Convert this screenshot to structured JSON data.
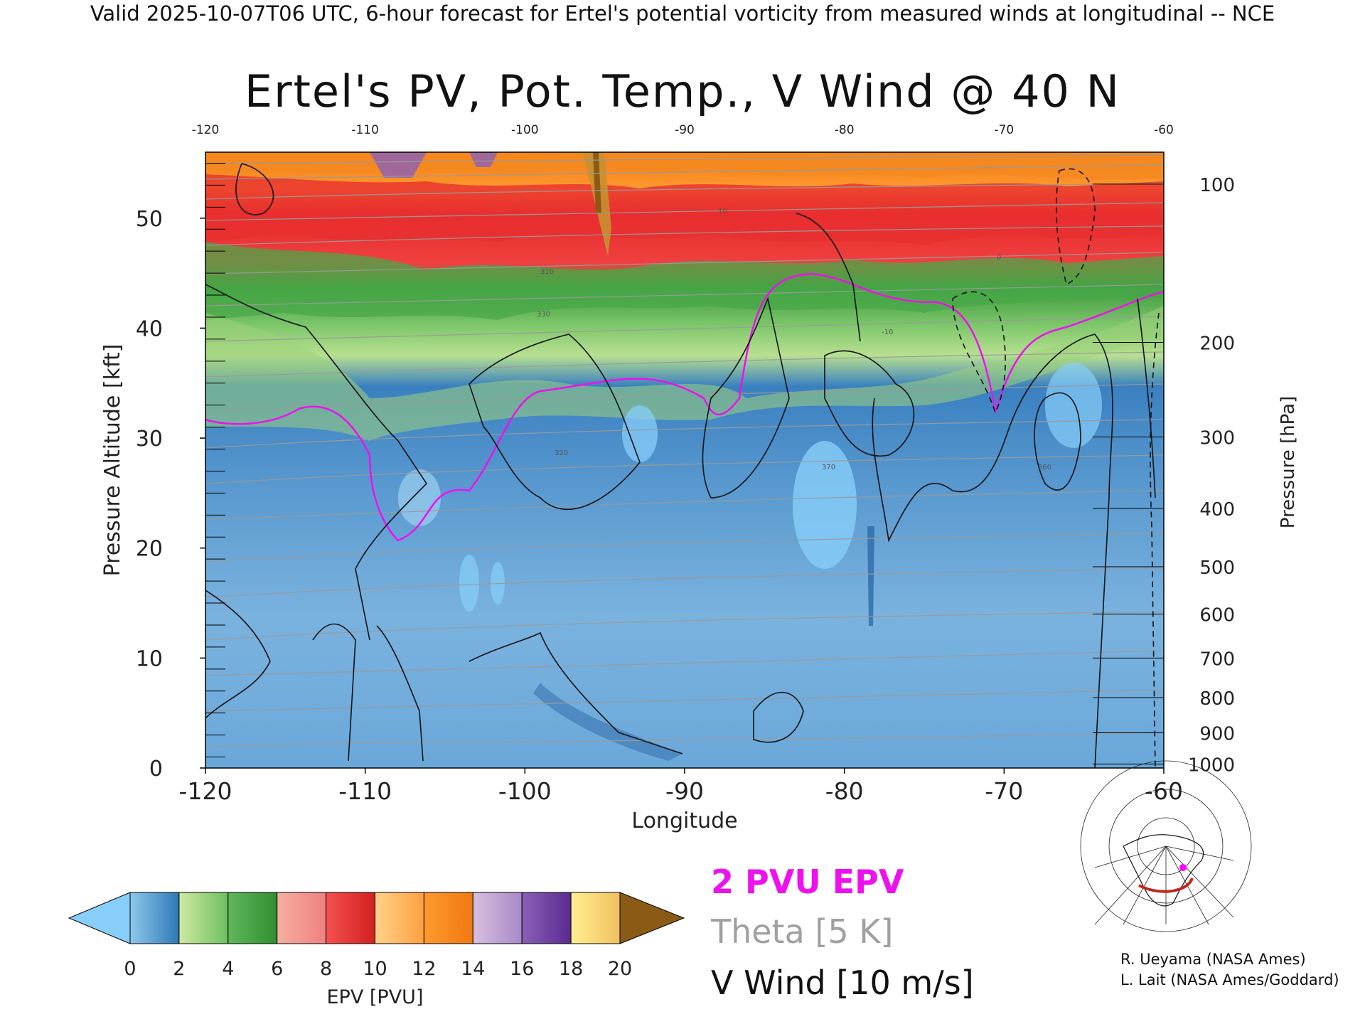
{
  "header": "Valid 2025-10-07T06 UTC, 6-hour forecast for Ertel's potential vorticity from measured winds at longitudinal -- NCE",
  "title": "Ertel's PV, Pot. Temp., V Wind @ 40 N",
  "chart_data": {
    "type": "heatmap",
    "title": "Ertel's PV, Pot. Temp., V Wind @ 40 N",
    "xlabel": "Longitude",
    "ylabel_left": "Pressure Altitude [kft]",
    "ylabel_right": "Pressure [hPa]",
    "xlim": [
      -120,
      -60
    ],
    "ylim": [
      0,
      56
    ],
    "x_ticks": [
      "-120",
      "-110",
      "-100",
      "-90",
      "-80",
      "-70",
      "-60"
    ],
    "top_ticks": [
      "-120",
      "-110",
      "-100",
      "-90",
      "-80",
      "-70",
      "-60"
    ],
    "y_ticks": [
      "0",
      "10",
      "20",
      "30",
      "40",
      "50"
    ],
    "pressure_ticks": [
      "1000",
      "900",
      "800",
      "700",
      "600",
      "500",
      "400",
      "300",
      "200",
      "100"
    ],
    "pressure_tick_kft": [
      0.36,
      3.2,
      6.4,
      10,
      14.0,
      18.3,
      23.6,
      30.1,
      38.7,
      53.1
    ],
    "colorbar": {
      "label": "EPV [PVU]",
      "ticks": [
        "0",
        "2",
        "4",
        "6",
        "8",
        "10",
        "12",
        "14",
        "16",
        "18",
        "20"
      ],
      "low_extend_color": "#87cefa",
      "high_extend_color": "#8b5a14",
      "segments": [
        [
          "#8ec8ea",
          "#2e78b8"
        ],
        [
          "#cfe9a0",
          "#6cc060"
        ],
        [
          "#5fb85a",
          "#2f8f2f"
        ],
        [
          "#f4b0a0",
          "#f08080"
        ],
        [
          "#f55050",
          "#d22020"
        ],
        [
          "#ffd28a",
          "#ffa040"
        ],
        [
          "#ff9a30",
          "#f07810"
        ],
        [
          "#d8c0e0",
          "#a888c8"
        ],
        [
          "#8a60b8",
          "#5a2a90"
        ],
        [
          "#fff090",
          "#f0c060"
        ]
      ]
    },
    "layers": {
      "pv_2pvu_color": "#ee10ee",
      "theta_color": "#9a9a9a",
      "vwind_color": "#000000"
    },
    "contour_labels": [
      "10",
      "0",
      "-10",
      "370",
      "360",
      "320",
      "310",
      "330"
    ]
  },
  "legend": {
    "pv_label": "2 PVU EPV",
    "theta_label": "Theta [5 K]",
    "wind_label": "V Wind [10 m/s]"
  },
  "credits": [
    "R. Ueyama (NASA Ames)",
    "L. Lait (NASA Ames/Goddard)"
  ],
  "map_inset": {
    "marker_color": "#ff00ff",
    "track_color": "#c0281c"
  }
}
